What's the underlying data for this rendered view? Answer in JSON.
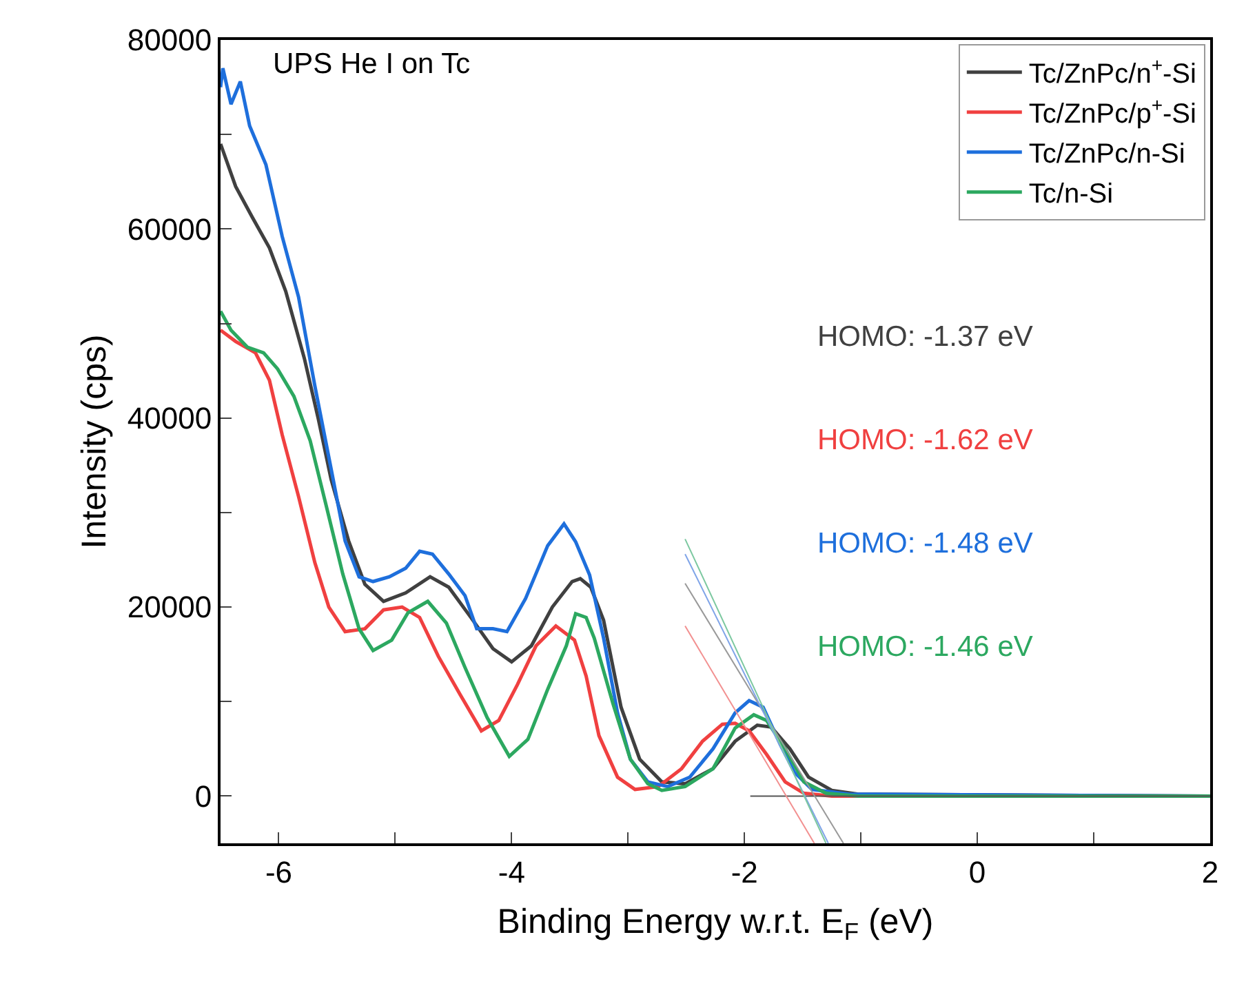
{
  "chart_data": {
    "type": "line",
    "xlabel": "Binding Energy w.r.t. E$_{F}$ (eV)",
    "ylabel": "Intensity (cps)",
    "xlim": [
      -6.5,
      2
    ],
    "ylim": [
      -5000,
      80000
    ],
    "xticks": [
      -6,
      {
        "value": -5,
        "label": null
      },
      -4,
      {
        "value": -3,
        "label": null
      },
      -2,
      {
        "value": -1,
        "label": null
      },
      0,
      {
        "value": 1,
        "label": null
      },
      2
    ],
    "yticks": [
      0,
      {
        "value": 10000,
        "label": null
      },
      20000,
      {
        "value": 30000,
        "label": null
      },
      40000,
      {
        "value": 50000,
        "label": null
      },
      60000,
      {
        "value": 70000,
        "label": null
      },
      80000
    ],
    "legend": "top right",
    "line_style": "solid",
    "marker": "none",
    "annotations": [
      "UPS He I on Tc",
      "HOMO: -1.37 eV",
      "HOMO: -1.62 eV",
      "HOMO: -1.48 eV",
      "HOMO: -1.46 eV"
    ],
    "series": [
      {
        "name": "Tc/ZnPc/n$^{+}$-Si",
        "color": "#404040",
        "x": [
          -6.5,
          -6.37,
          -6.23,
          -6.08,
          -5.94,
          -5.78,
          -5.66,
          -5.55,
          -5.4,
          -5.26,
          -5.1,
          -4.91,
          -4.7,
          -4.54,
          -4.35,
          -4.16,
          -4.0,
          -3.83,
          -3.65,
          -3.48,
          -3.41,
          -3.32,
          -3.21,
          -3.06,
          -2.9,
          -2.71,
          -2.51,
          -2.27,
          -2.08,
          -1.89,
          -1.77,
          -1.61,
          -1.45,
          -1.25,
          -1.02,
          2
        ],
        "values": [
          69000,
          64500,
          61300,
          58000,
          53400,
          46300,
          39900,
          33500,
          27000,
          22400,
          20600,
          21500,
          23200,
          22100,
          18900,
          15600,
          14200,
          15900,
          20000,
          22700,
          23000,
          22100,
          18600,
          9400,
          3900,
          1500,
          1300,
          2900,
          5800,
          7500,
          7300,
          5000,
          2000,
          600,
          200,
          0
        ]
      },
      {
        "name": "Tc/ZnPc/p$^{+}$-Si",
        "color": "#f04040",
        "x": [
          -6.5,
          -6.37,
          -6.2,
          -6.08,
          -5.97,
          -5.83,
          -5.69,
          -5.57,
          -5.43,
          -5.26,
          -5.1,
          -4.94,
          -4.79,
          -4.63,
          -4.44,
          -4.26,
          -4.11,
          -3.95,
          -3.79,
          -3.62,
          -3.46,
          -3.36,
          -3.25,
          -3.09,
          -2.94,
          -2.74,
          -2.54,
          -2.36,
          -2.19,
          -2.08,
          -1.96,
          -1.81,
          -1.65,
          -1.49,
          -1.25,
          2
        ],
        "values": [
          49300,
          48100,
          46900,
          44000,
          38200,
          31700,
          24700,
          20000,
          17400,
          17700,
          19700,
          20000,
          18900,
          14800,
          10700,
          6900,
          8000,
          11800,
          15900,
          18000,
          16500,
          12700,
          6400,
          2000,
          700,
          1000,
          2900,
          5800,
          7600,
          7700,
          6900,
          4400,
          1500,
          300,
          0,
          0
        ]
      },
      {
        "name": "Tc/ZnPc/n-Si",
        "color": "#1e6fdc",
        "x": [
          -6.5,
          -6.48,
          -6.41,
          -6.33,
          -6.25,
          -6.11,
          -5.97,
          -5.83,
          -5.69,
          -5.55,
          -5.43,
          -5.31,
          -5.19,
          -5.05,
          -4.91,
          -4.79,
          -4.68,
          -4.54,
          -4.4,
          -4.3,
          -4.16,
          -4.04,
          -3.88,
          -3.69,
          -3.55,
          -3.45,
          -3.33,
          -3.21,
          -3.09,
          -2.98,
          -2.83,
          -2.66,
          -2.47,
          -2.27,
          -2.08,
          -1.96,
          -1.84,
          -1.69,
          -1.57,
          -1.42,
          -1.1,
          2
        ],
        "values": [
          75000,
          77000,
          73200,
          75600,
          70900,
          66800,
          59200,
          52800,
          43400,
          34600,
          27000,
          23200,
          22700,
          23200,
          24100,
          25900,
          25600,
          23500,
          21200,
          17700,
          17700,
          17400,
          20900,
          26500,
          28800,
          26900,
          23400,
          16700,
          8800,
          3900,
          1500,
          1000,
          2000,
          5000,
          8800,
          10100,
          9400,
          5400,
          2500,
          700,
          200,
          0
        ]
      },
      {
        "name": "Tc/n-Si",
        "color": "#2ca860",
        "x": [
          -6.5,
          -6.41,
          -6.27,
          -6.13,
          -6.01,
          -5.87,
          -5.73,
          -5.59,
          -5.45,
          -5.31,
          -5.19,
          -5.03,
          -4.89,
          -4.72,
          -4.56,
          -4.4,
          -4.21,
          -4.02,
          -3.86,
          -3.69,
          -3.53,
          -3.45,
          -3.36,
          -3.29,
          -3.13,
          -2.98,
          -2.83,
          -2.71,
          -2.51,
          -2.27,
          -2.08,
          -1.92,
          -1.81,
          -1.65,
          -1.49,
          -1.3,
          -1.02,
          2
        ],
        "values": [
          51300,
          49300,
          47500,
          46900,
          45200,
          42300,
          37600,
          30600,
          23500,
          17700,
          15400,
          16500,
          19400,
          20600,
          18300,
          13600,
          8300,
          4200,
          6000,
          11300,
          15900,
          19300,
          18900,
          16700,
          9800,
          3900,
          1300,
          600,
          1000,
          2900,
          7200,
          8600,
          8000,
          5000,
          1500,
          300,
          0,
          0
        ]
      },
      {
        "color": "#555555",
        "x": [
          -1.95,
          2
        ],
        "values": [
          0,
          0
        ]
      },
      {
        "color": "#999999",
        "x": [
          -2.51,
          -1.15
        ],
        "values": [
          22500,
          -5000
        ]
      },
      {
        "color": "#f29090",
        "x": [
          -2.51,
          -1.4
        ],
        "values": [
          18000,
          -5000
        ]
      },
      {
        "color": "#7fa4e8",
        "x": [
          -2.51,
          -1.28
        ],
        "values": [
          25600,
          -5000
        ]
      },
      {
        "color": "#7cc8a0",
        "x": [
          -2.51,
          -1.3
        ],
        "values": [
          27200,
          -5000
        ]
      }
    ]
  }
}
